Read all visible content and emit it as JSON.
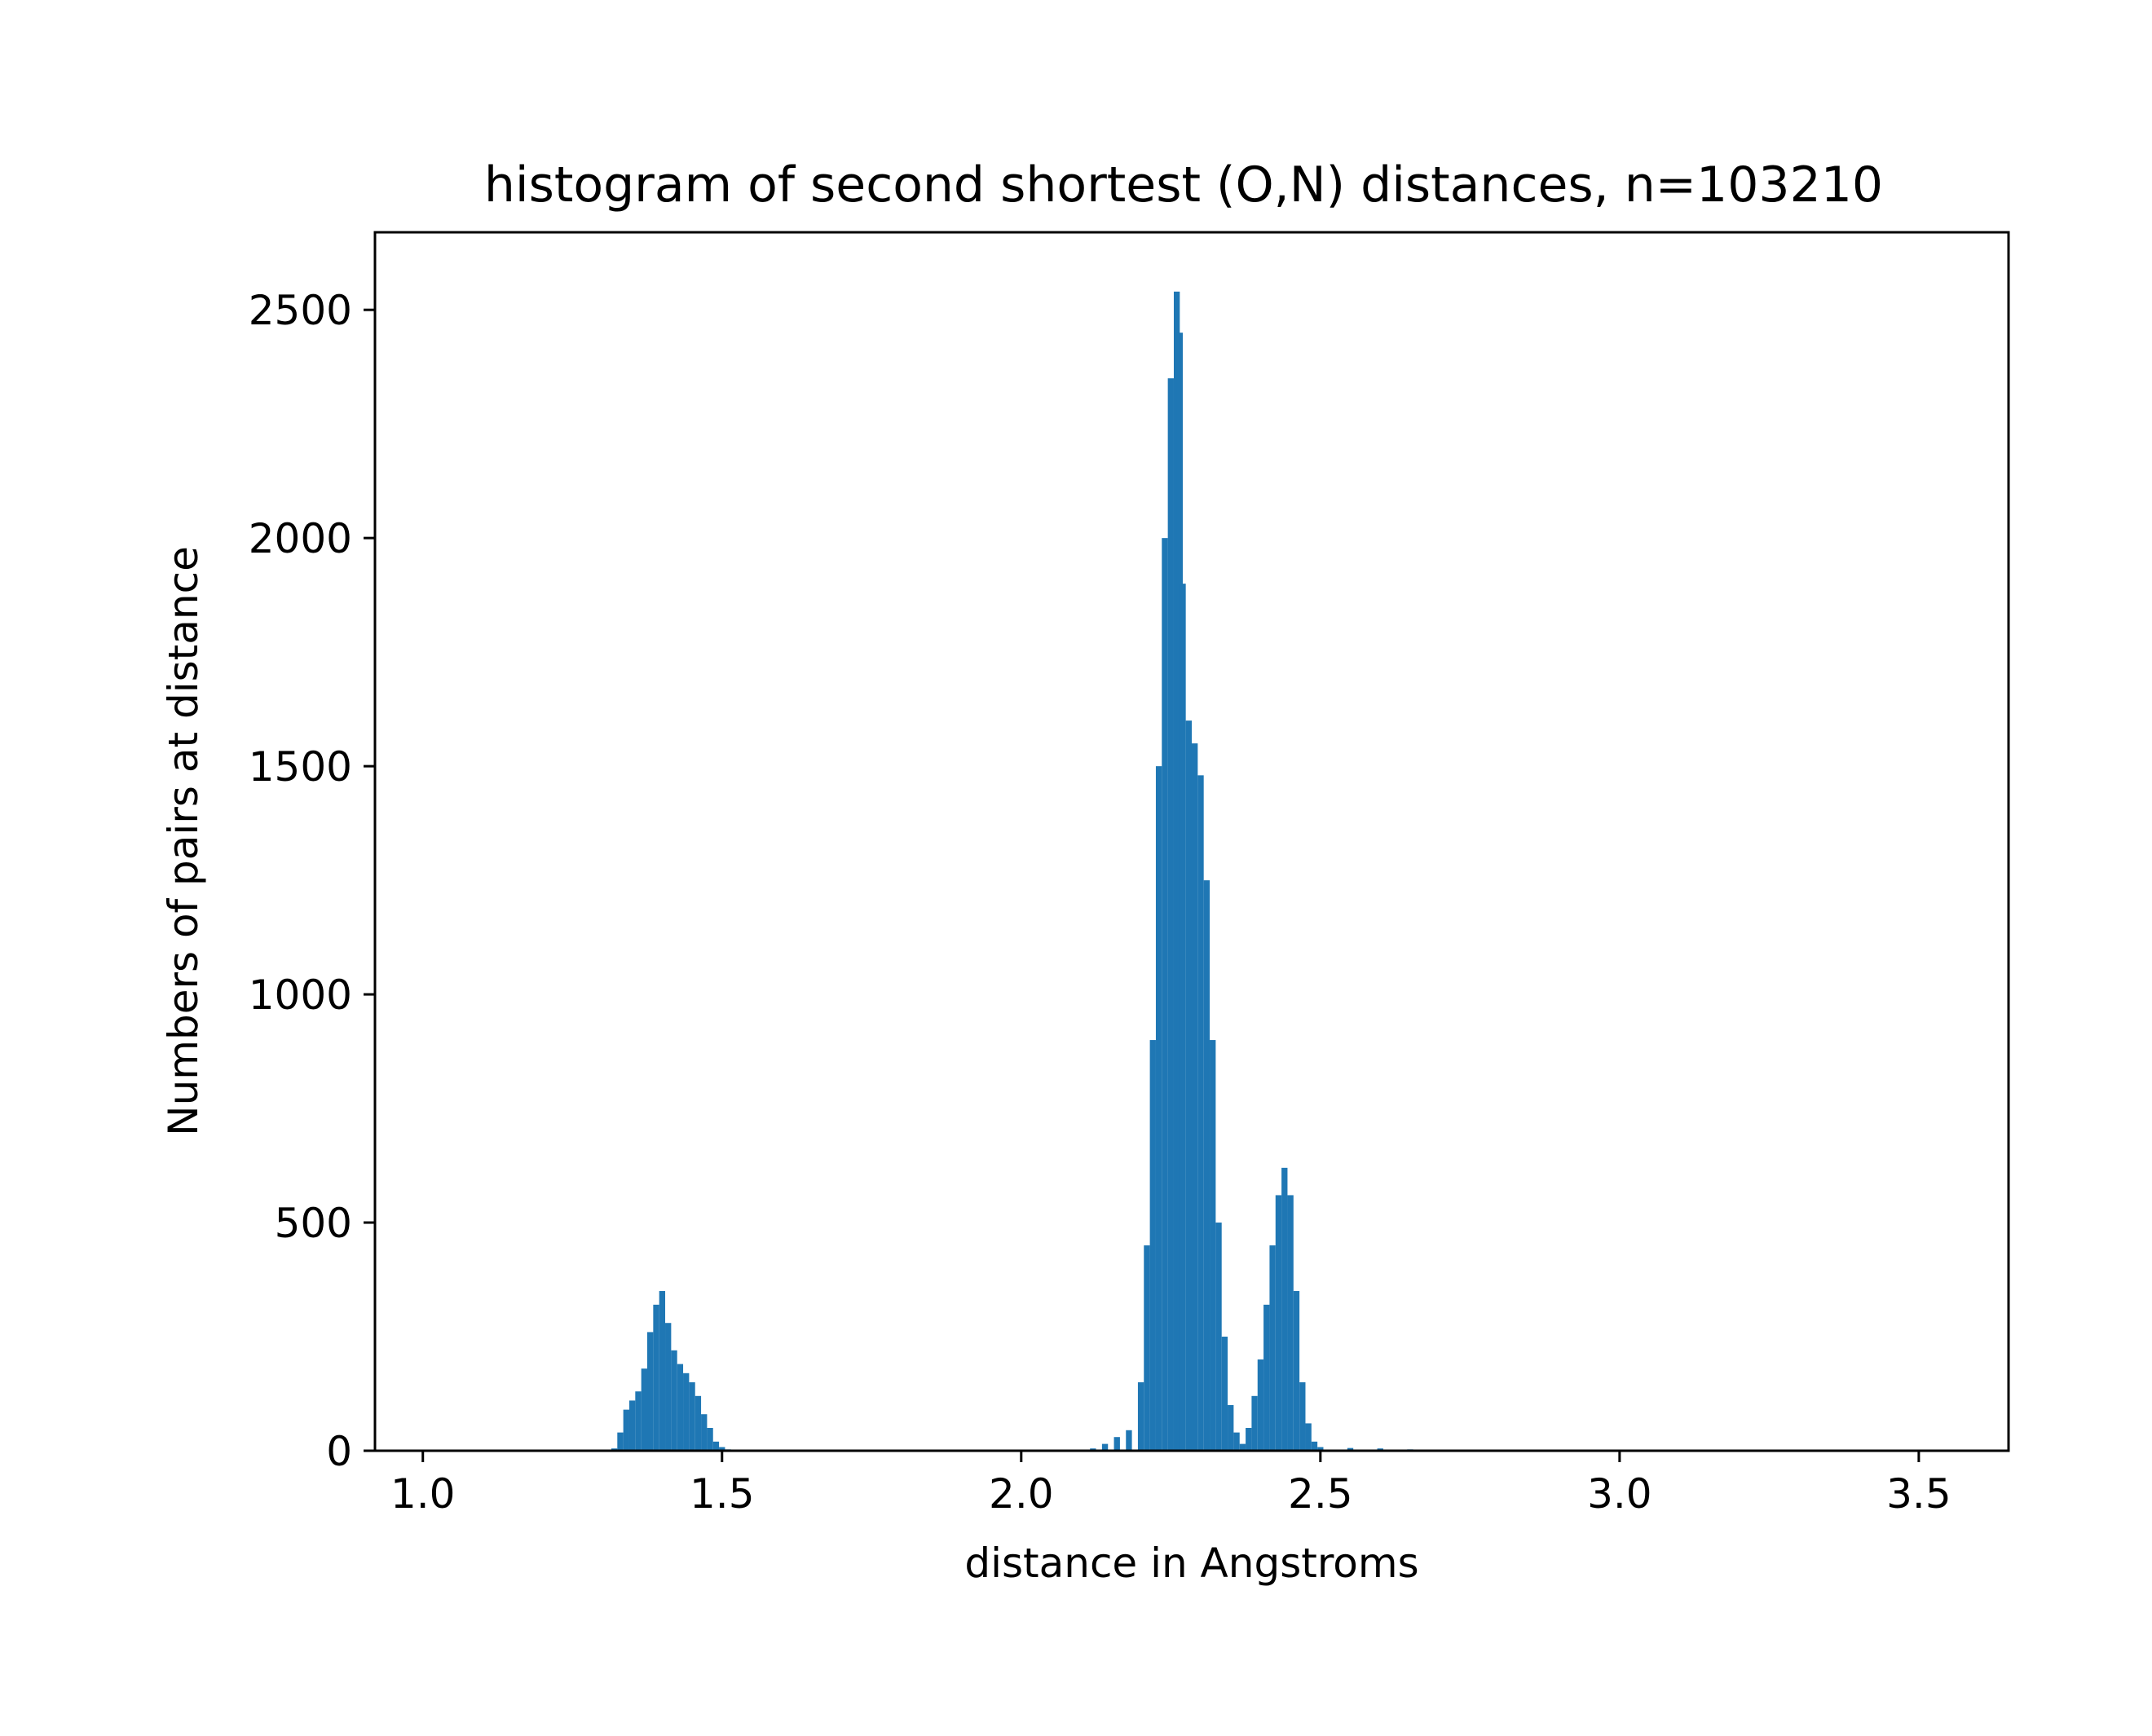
{
  "chart_data": {
    "type": "bar",
    "title": "histogram of second shortest (O,N) distances, n=103210",
    "xlabel": "distance in Angstroms",
    "ylabel": "Numbers of pairs at distance",
    "xlim": [
      0.92,
      3.65
    ],
    "ylim": [
      0,
      2670
    ],
    "grid": false,
    "color": "#1f77b4",
    "x_ticks": [
      1.0,
      1.5,
      2.0,
      2.5,
      3.0,
      3.5
    ],
    "x_tick_labels": [
      "1.0",
      "1.5",
      "2.0",
      "2.5",
      "3.0",
      "3.5"
    ],
    "y_ticks": [
      0,
      500,
      1000,
      1500,
      2000,
      2500
    ],
    "y_tick_labels": [
      "0",
      "500",
      "1000",
      "1500",
      "2000",
      "2500"
    ],
    "bins": {
      "x": [
        1.32,
        1.33,
        1.34,
        1.35,
        1.36,
        1.37,
        1.38,
        1.39,
        1.4,
        1.41,
        1.42,
        1.43,
        1.44,
        1.45,
        1.46,
        1.47,
        1.48,
        1.49,
        1.5,
        1.51,
        2.12,
        2.14,
        2.16,
        2.18,
        2.2,
        2.21,
        2.22,
        2.23,
        2.24,
        2.25,
        2.26,
        2.265,
        2.27,
        2.28,
        2.29,
        2.3,
        2.31,
        2.32,
        2.33,
        2.34,
        2.35,
        2.36,
        2.37,
        2.38,
        2.39,
        2.4,
        2.41,
        2.42,
        2.43,
        2.44,
        2.45,
        2.46,
        2.47,
        2.48,
        2.49,
        2.5,
        2.55,
        2.6,
        2.65,
        2.7
      ],
      "values": [
        5,
        40,
        90,
        110,
        130,
        180,
        260,
        320,
        350,
        280,
        220,
        190,
        170,
        150,
        120,
        80,
        50,
        20,
        8,
        3,
        5,
        15,
        30,
        45,
        150,
        450,
        900,
        1500,
        2000,
        2350,
        2540,
        2450,
        1900,
        1600,
        1550,
        1480,
        1250,
        900,
        500,
        250,
        100,
        40,
        15,
        50,
        120,
        200,
        320,
        450,
        560,
        620,
        560,
        350,
        150,
        60,
        20,
        8,
        6,
        5,
        3,
        2
      ],
      "width": 0.01
    }
  }
}
